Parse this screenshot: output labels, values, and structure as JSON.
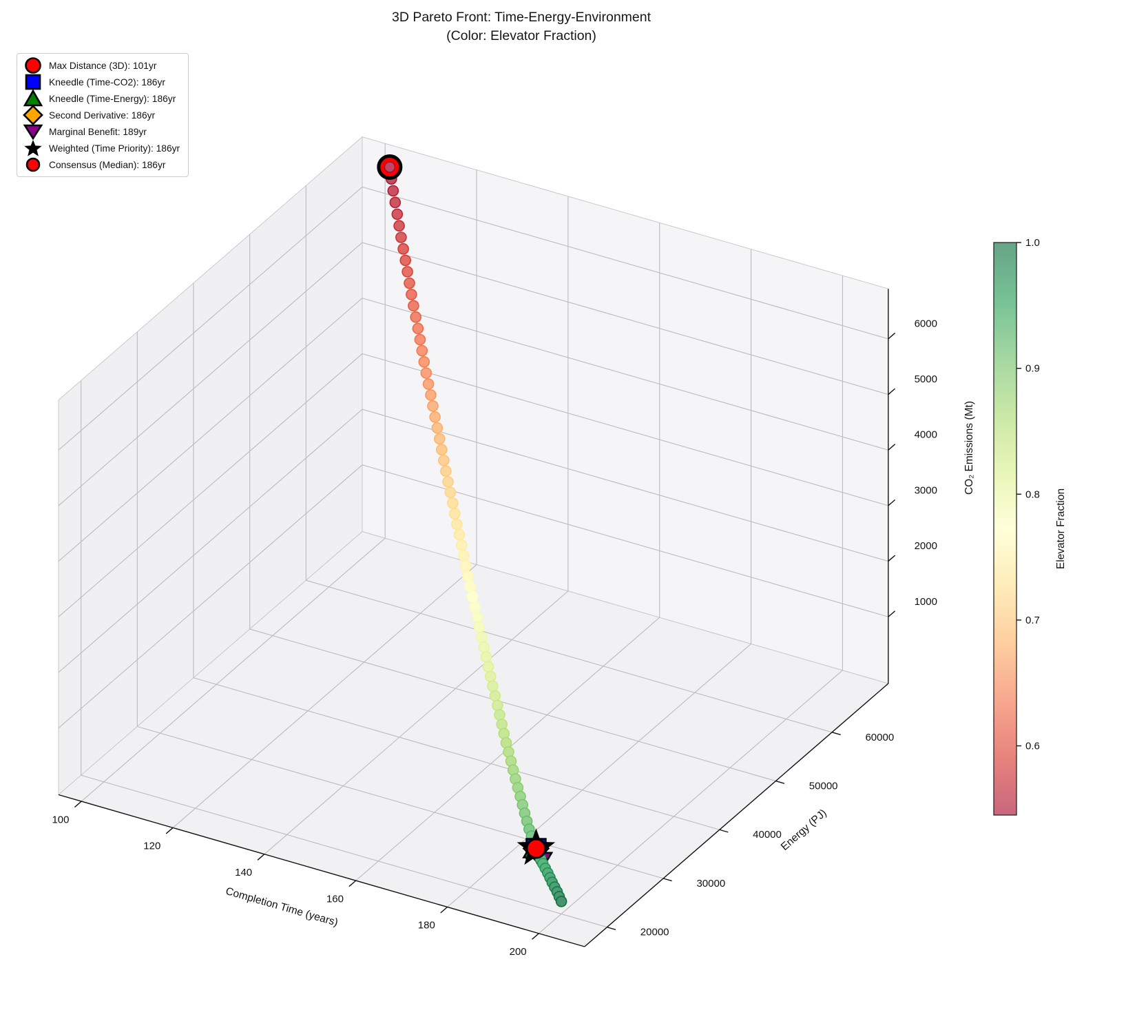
{
  "title": {
    "line1": "3D Pareto Front: Time-Energy-Environment",
    "line2": "(Color: Elevator Fraction)"
  },
  "legend": {
    "items": [
      {
        "label": "Max Distance (3D): 101yr",
        "shape": "circle",
        "color": "#FF0000"
      },
      {
        "label": "Kneedle (Time-CO2): 186yr",
        "shape": "square",
        "color": "#0000FF"
      },
      {
        "label": "Kneedle (Time-Energy): 186yr",
        "shape": "triangle-up",
        "color": "#008000"
      },
      {
        "label": "Second Derivative: 186yr",
        "shape": "diamond",
        "color": "#FFA500"
      },
      {
        "label": "Marginal Benefit: 189yr",
        "shape": "triangle-down",
        "color": "#8B008B"
      },
      {
        "label": "Weighted (Time Priority): 186yr",
        "shape": "star",
        "color": "#000000"
      },
      {
        "label": "Consensus (Median): 186yr",
        "shape": "circle",
        "color": "#FF0000"
      }
    ]
  },
  "axes": {
    "x": {
      "label": "Completion Time (years)",
      "ticks": [
        100,
        120,
        140,
        160,
        180,
        200
      ],
      "range": [
        95,
        210
      ]
    },
    "y": {
      "label": "Energy (PJ)",
      "ticks": [
        20000,
        30000,
        40000,
        50000,
        60000
      ],
      "range": [
        16000,
        70000
      ]
    },
    "z": {
      "label": "CO₂ Emissions (Mt)",
      "ticks": [
        1000,
        2000,
        3000,
        4000,
        5000,
        6000
      ],
      "range": [
        -200,
        6900
      ]
    }
  },
  "colorbar": {
    "label": "Elevator Fraction",
    "ticks": [
      1.0,
      0.9,
      0.8,
      0.7,
      0.6
    ],
    "range": [
      0.545,
      1.0
    ],
    "colormap": "RdYlGn",
    "alpha": 0.6,
    "rdylgn_stops": [
      "#a50026",
      "#d73027",
      "#f46d43",
      "#fdae61",
      "#fee08b",
      "#ffffbf",
      "#d9ef8b",
      "#a6d96a",
      "#66bd63",
      "#1a9850",
      "#006837"
    ]
  },
  "chart_data": {
    "type": "scatter",
    "projection": "3d",
    "color_encoding": "Elevator Fraction (0.55 red → 1.0 green, RdYlGn)",
    "columns": [
      "completion_time_years",
      "energy_PJ",
      "co2_Mt",
      "elevator_fraction"
    ],
    "points": [
      [
        101.0,
        70000,
        6500,
        0.55
      ],
      [
        103.5,
        68570,
        6259,
        0.562
      ],
      [
        106.1,
        67195,
        6019,
        0.573
      ],
      [
        108.6,
        65845,
        5781,
        0.585
      ],
      [
        111.2,
        64505,
        5546,
        0.596
      ],
      [
        113.7,
        63180,
        5312,
        0.608
      ],
      [
        116.2,
        61865,
        5080,
        0.619
      ],
      [
        118.8,
        60555,
        4848,
        0.631
      ],
      [
        121.3,
        59240,
        4623,
        0.642
      ],
      [
        123.8,
        57940,
        4394,
        0.654
      ],
      [
        126.4,
        56645,
        4174,
        0.665
      ],
      [
        128.9,
        55360,
        3951,
        0.677
      ],
      [
        131.5,
        54060,
        3734,
        0.688
      ],
      [
        134.0,
        52775,
        3518,
        0.7
      ],
      [
        136.5,
        51490,
        3305,
        0.712
      ],
      [
        139.1,
        50210,
        3095,
        0.723
      ],
      [
        141.6,
        48930,
        2887,
        0.735
      ],
      [
        144.2,
        47660,
        2683,
        0.746
      ],
      [
        146.7,
        46380,
        2481,
        0.758
      ],
      [
        149.2,
        45110,
        2282,
        0.769
      ],
      [
        151.8,
        43840,
        2088,
        0.781
      ],
      [
        154.3,
        42575,
        1896,
        0.792
      ],
      [
        156.9,
        41305,
        1708,
        0.804
      ],
      [
        159.4,
        40045,
        1525,
        0.815
      ],
      [
        161.9,
        38780,
        1346,
        0.827
      ],
      [
        164.5,
        37520,
        1171,
        0.838
      ],
      [
        167.0,
        36260,
        1002,
        0.85
      ],
      [
        169.5,
        35005,
        838,
        0.862
      ],
      [
        172.1,
        33750,
        680,
        0.873
      ],
      [
        174.6,
        32495,
        530,
        0.885
      ],
      [
        177.2,
        31245,
        387,
        0.896
      ],
      [
        179.7,
        29995,
        255,
        0.908
      ],
      [
        182.2,
        28745,
        135,
        0.919
      ],
      [
        184.8,
        27500,
        60,
        0.931
      ],
      [
        187.3,
        26255,
        25,
        0.942
      ],
      [
        189.8,
        25010,
        25,
        0.954
      ],
      [
        192.4,
        23770,
        25,
        0.965
      ],
      [
        194.9,
        22530,
        25,
        0.977
      ],
      [
        197.5,
        21295,
        25,
        0.988
      ],
      [
        200.0,
        20000,
        25,
        1.0
      ]
    ],
    "special_points": [
      {
        "name": "max-distance-3d",
        "shape": "circle",
        "color": "#FF0000",
        "time": 101,
        "energy": 70000,
        "co2": 6500,
        "legend_index": 0
      },
      {
        "name": "kneedle-time-co2",
        "shape": "square",
        "color": "#0000FF",
        "time": 186,
        "energy": 26900,
        "co2": 40,
        "legend_index": 1
      },
      {
        "name": "kneedle-time-energy",
        "shape": "triangle-up",
        "color": "#008000",
        "time": 186,
        "energy": 26900,
        "co2": 40,
        "legend_index": 2
      },
      {
        "name": "second-derivative",
        "shape": "diamond",
        "color": "#FFA500",
        "time": 186,
        "energy": 26900,
        "co2": 40,
        "legend_index": 3
      },
      {
        "name": "marginal-benefit",
        "shape": "triangle-down",
        "color": "#8B008B",
        "time": 189,
        "energy": 25400,
        "co2": 30,
        "legend_index": 4
      },
      {
        "name": "weighted-time-priority",
        "shape": "star",
        "color": "#000000",
        "time": 186,
        "energy": 26900,
        "co2": 40,
        "legend_index": 5
      },
      {
        "name": "consensus-median",
        "shape": "circle",
        "color": "#FF0000",
        "time": 186,
        "energy": 26900,
        "co2": 40,
        "legend_index": 6
      }
    ]
  }
}
